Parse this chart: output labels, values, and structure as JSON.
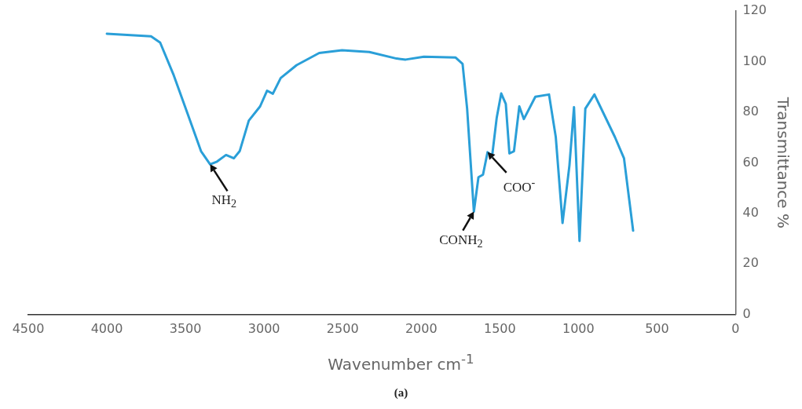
{
  "chart_data": {
    "type": "line",
    "xlabel": "Wavenumber cm$^{-1}$",
    "ylabel": "Transmittance %",
    "xlim": [
      4500,
      0
    ],
    "xticks": [
      4500,
      4000,
      3500,
      3000,
      2500,
      2000,
      1500,
      1000,
      500,
      0
    ],
    "ylim": [
      0,
      120
    ],
    "yticks": [
      0,
      20,
      40,
      60,
      80,
      100,
      120
    ],
    "grid": false,
    "legend": false,
    "marker": "none",
    "line_style": "solid",
    "series": [
      {
        "color": "#2a9fd8",
        "x": [
          4000,
          3719,
          3661,
          3574,
          3487,
          3401,
          3343,
          3299,
          3242,
          3192,
          3155,
          3097,
          3025,
          2981,
          2944,
          2894,
          2793,
          2649,
          2504,
          2330,
          2157,
          2099,
          1983,
          1781,
          1737,
          1708,
          1665,
          1636,
          1607,
          1578,
          1549,
          1520,
          1491,
          1462,
          1439,
          1410,
          1376,
          1347,
          1274,
          1187,
          1144,
          1101,
          1057,
          1028,
          993,
          956,
          898,
          768,
          710,
          652
        ],
        "values": [
          111,
          110,
          107.5,
          94.5,
          79.5,
          64.6,
          59.4,
          60.5,
          63.1,
          61.8,
          64.6,
          76.7,
          82.3,
          88.5,
          87.3,
          93.5,
          98.6,
          103.4,
          104.5,
          103.8,
          101.2,
          100.8,
          101.9,
          101.6,
          99.1,
          81.4,
          40.7,
          54.3,
          55.3,
          64.2,
          62.7,
          77.7,
          87.4,
          83.3,
          63.7,
          64.6,
          82.3,
          77.3,
          86.1,
          87,
          70.2,
          36.2,
          59,
          82,
          29.1,
          81.4,
          87,
          70.2,
          61.8,
          33.2
        ]
      }
    ],
    "annotations": [
      {
        "text": "NH$_{2}$",
        "x": 3343,
        "y": 59.4
      },
      {
        "text": "CONH$_{2}$",
        "x": 1665,
        "y": 40.7
      },
      {
        "text": "COO$^{-}$",
        "x": 1578,
        "y": 64.2
      },
      "(a)"
    ]
  }
}
